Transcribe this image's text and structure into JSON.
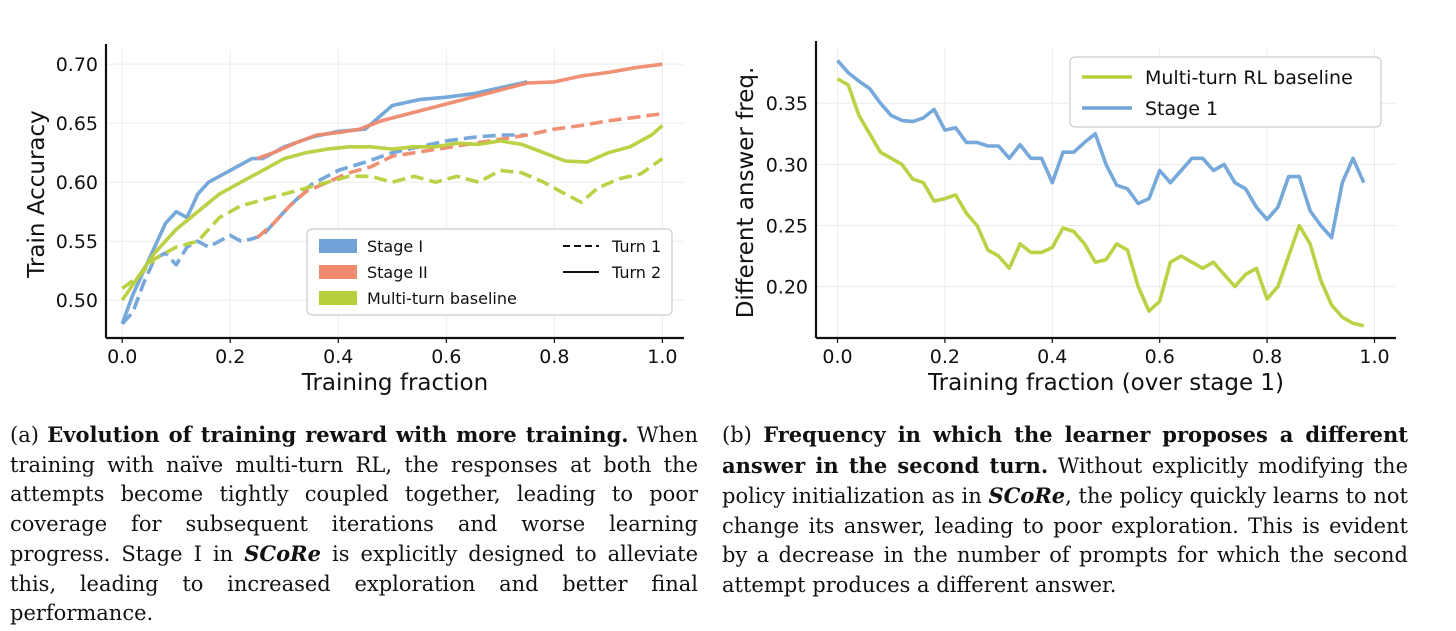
{
  "chart_data": [
    {
      "type": "line",
      "panel": "(a)",
      "xlabel": "Training fraction",
      "ylabel": "Train Accuracy",
      "xlim": [
        -0.03,
        1.04
      ],
      "ylim": [
        0.468,
        0.712
      ],
      "xticks": [
        0.0,
        0.2,
        0.4,
        0.6,
        0.8,
        1.0
      ],
      "yticks": [
        0.5,
        0.55,
        0.6,
        0.65,
        0.7
      ],
      "xtick_labels": [
        "0.0",
        "0.2",
        "0.4",
        "0.6",
        "0.8",
        "1.0"
      ],
      "ytick_labels": [
        "0.50",
        "0.55",
        "0.60",
        "0.65",
        "0.70"
      ],
      "grid": true,
      "legend": {
        "placement": "lower-right",
        "color_entries": [
          {
            "label": "Stage I",
            "color": "#6fa3d8"
          },
          {
            "label": "Stage II",
            "color": "#ef8a6d"
          },
          {
            "label": "Multi-turn baseline",
            "color": "#b8cf3c"
          }
        ],
        "style_entries": [
          {
            "label": "Turn 1",
            "dash": "dashed"
          },
          {
            "label": "Turn 2",
            "dash": "solid"
          }
        ]
      },
      "series": [
        {
          "name": "Stage I",
          "turn": "Turn 2",
          "color": "#6fa3d8",
          "dashed": false,
          "x": [
            0.0,
            0.02,
            0.04,
            0.06,
            0.08,
            0.1,
            0.12,
            0.14,
            0.16,
            0.18,
            0.2,
            0.22,
            0.24,
            0.26,
            0.3,
            0.35,
            0.4,
            0.45,
            0.5,
            0.55,
            0.6,
            0.65,
            0.7,
            0.75
          ],
          "y": [
            0.48,
            0.505,
            0.525,
            0.545,
            0.565,
            0.575,
            0.57,
            0.59,
            0.6,
            0.605,
            0.61,
            0.615,
            0.62,
            0.62,
            0.63,
            0.638,
            0.643,
            0.645,
            0.665,
            0.67,
            0.672,
            0.675,
            0.68,
            0.685
          ]
        },
        {
          "name": "Stage I",
          "turn": "Turn 1",
          "color": "#6fa3d8",
          "dashed": true,
          "x": [
            0.0,
            0.02,
            0.04,
            0.06,
            0.08,
            0.1,
            0.12,
            0.14,
            0.16,
            0.18,
            0.2,
            0.22,
            0.24,
            0.26,
            0.3,
            0.35,
            0.4,
            0.45,
            0.5,
            0.55,
            0.6,
            0.65,
            0.7,
            0.75
          ],
          "y": [
            0.48,
            0.49,
            0.515,
            0.535,
            0.54,
            0.53,
            0.545,
            0.55,
            0.545,
            0.55,
            0.555,
            0.55,
            0.552,
            0.555,
            0.575,
            0.598,
            0.61,
            0.617,
            0.625,
            0.63,
            0.635,
            0.638,
            0.64,
            0.64
          ]
        },
        {
          "name": "Stage II",
          "turn": "Turn 2",
          "color": "#ef8a6d",
          "dashed": false,
          "x": [
            0.25,
            0.28,
            0.32,
            0.36,
            0.4,
            0.44,
            0.48,
            0.75,
            0.8,
            0.85,
            0.9,
            0.95,
            1.0
          ],
          "y": [
            0.62,
            0.625,
            0.633,
            0.64,
            0.642,
            0.645,
            0.652,
            0.684,
            0.685,
            0.69,
            0.693,
            0.697,
            0.7
          ]
        },
        {
          "name": "Stage II",
          "turn": "Turn 1",
          "color": "#ef8a6d",
          "dashed": true,
          "x": [
            0.25,
            0.28,
            0.31,
            0.34,
            0.38,
            0.42,
            0.46,
            0.5,
            0.75,
            0.8,
            0.85,
            0.9,
            0.95,
            1.0
          ],
          "y": [
            0.553,
            0.565,
            0.58,
            0.592,
            0.6,
            0.608,
            0.613,
            0.622,
            0.64,
            0.645,
            0.648,
            0.652,
            0.655,
            0.658
          ]
        },
        {
          "name": "Multi-turn baseline",
          "turn": "Turn 2",
          "color": "#b8cf3c",
          "dashed": false,
          "x": [
            0.0,
            0.03,
            0.06,
            0.1,
            0.14,
            0.18,
            0.22,
            0.26,
            0.3,
            0.34,
            0.38,
            0.42,
            0.46,
            0.5,
            0.54,
            0.58,
            0.62,
            0.66,
            0.7,
            0.74,
            0.78,
            0.82,
            0.86,
            0.9,
            0.94,
            0.98,
            1.0
          ],
          "y": [
            0.5,
            0.52,
            0.54,
            0.56,
            0.575,
            0.59,
            0.6,
            0.61,
            0.62,
            0.625,
            0.628,
            0.63,
            0.63,
            0.628,
            0.63,
            0.63,
            0.633,
            0.632,
            0.635,
            0.632,
            0.625,
            0.618,
            0.617,
            0.625,
            0.63,
            0.64,
            0.648
          ]
        },
        {
          "name": "Multi-turn baseline",
          "turn": "Turn 1",
          "color": "#b8cf3c",
          "dashed": true,
          "x": [
            0.0,
            0.03,
            0.06,
            0.1,
            0.14,
            0.18,
            0.22,
            0.26,
            0.3,
            0.34,
            0.38,
            0.42,
            0.46,
            0.5,
            0.54,
            0.58,
            0.62,
            0.66,
            0.7,
            0.74,
            0.78,
            0.82,
            0.85,
            0.88,
            0.92,
            0.96,
            1.0
          ],
          "y": [
            0.51,
            0.52,
            0.535,
            0.545,
            0.55,
            0.57,
            0.58,
            0.585,
            0.59,
            0.595,
            0.6,
            0.605,
            0.605,
            0.6,
            0.605,
            0.6,
            0.605,
            0.6,
            0.61,
            0.608,
            0.6,
            0.59,
            0.583,
            0.595,
            0.603,
            0.607,
            0.62
          ]
        }
      ]
    },
    {
      "type": "line",
      "panel": "(b)",
      "xlabel": "Training fraction (over stage 1)",
      "ylabel": "Different answer freq.",
      "xlim": [
        -0.04,
        1.04
      ],
      "ylim": [
        0.158,
        0.396
      ],
      "xticks": [
        0.0,
        0.2,
        0.4,
        0.6,
        0.8,
        1.0
      ],
      "yticks": [
        0.2,
        0.25,
        0.3,
        0.35
      ],
      "xtick_labels": [
        "0.0",
        "0.2",
        "0.4",
        "0.6",
        "0.8",
        "1.0"
      ],
      "ytick_labels": [
        "0.20",
        "0.25",
        "0.30",
        "0.35"
      ],
      "grid": true,
      "legend": {
        "placement": "top-right"
      },
      "series": [
        {
          "name": "Multi-turn RL baseline",
          "color": "#b8cf3c",
          "x": [
            0.0,
            0.02,
            0.04,
            0.06,
            0.08,
            0.1,
            0.12,
            0.14,
            0.16,
            0.18,
            0.2,
            0.22,
            0.24,
            0.26,
            0.28,
            0.3,
            0.32,
            0.34,
            0.36,
            0.38,
            0.4,
            0.42,
            0.44,
            0.46,
            0.48,
            0.5,
            0.52,
            0.54,
            0.56,
            0.58,
            0.6,
            0.62,
            0.64,
            0.66,
            0.68,
            0.7,
            0.72,
            0.74,
            0.76,
            0.78,
            0.8,
            0.82,
            0.84,
            0.86,
            0.88,
            0.9,
            0.92,
            0.94,
            0.96,
            0.98
          ],
          "y": [
            0.37,
            0.365,
            0.34,
            0.325,
            0.31,
            0.305,
            0.3,
            0.288,
            0.285,
            0.27,
            0.272,
            0.275,
            0.26,
            0.25,
            0.23,
            0.225,
            0.215,
            0.235,
            0.228,
            0.228,
            0.232,
            0.248,
            0.245,
            0.235,
            0.22,
            0.222,
            0.235,
            0.23,
            0.2,
            0.18,
            0.188,
            0.22,
            0.225,
            0.22,
            0.215,
            0.22,
            0.21,
            0.2,
            0.21,
            0.215,
            0.19,
            0.2,
            0.225,
            0.25,
            0.235,
            0.205,
            0.185,
            0.175,
            0.17,
            0.168
          ]
        },
        {
          "name": "Stage 1",
          "color": "#6fa3d8",
          "x": [
            0.0,
            0.02,
            0.04,
            0.06,
            0.08,
            0.1,
            0.12,
            0.14,
            0.16,
            0.18,
            0.2,
            0.22,
            0.24,
            0.26,
            0.28,
            0.3,
            0.32,
            0.34,
            0.36,
            0.38,
            0.4,
            0.42,
            0.44,
            0.46,
            0.48,
            0.5,
            0.52,
            0.54,
            0.56,
            0.58,
            0.6,
            0.62,
            0.64,
            0.66,
            0.68,
            0.7,
            0.72,
            0.74,
            0.76,
            0.78,
            0.8,
            0.82,
            0.84,
            0.86,
            0.88,
            0.9,
            0.92,
            0.94,
            0.96,
            0.98
          ],
          "y": [
            0.385,
            0.375,
            0.368,
            0.362,
            0.35,
            0.34,
            0.336,
            0.335,
            0.338,
            0.345,
            0.328,
            0.33,
            0.318,
            0.318,
            0.315,
            0.315,
            0.305,
            0.316,
            0.305,
            0.305,
            0.285,
            0.31,
            0.31,
            0.318,
            0.325,
            0.3,
            0.283,
            0.28,
            0.268,
            0.272,
            0.295,
            0.285,
            0.295,
            0.305,
            0.305,
            0.295,
            0.3,
            0.285,
            0.28,
            0.265,
            0.255,
            0.265,
            0.29,
            0.29,
            0.262,
            0.25,
            0.24,
            0.285,
            0.305,
            0.285
          ]
        }
      ]
    }
  ],
  "captions": {
    "a": {
      "prefix": "(a) ",
      "bold": "Evolution of training reward with more training.",
      "text1": " When training with naïve multi-turn RL, the responses at both the attempts become tightly coupled together, leading to poor coverage for subsequent iterations and worse learning progress. Stage I in ",
      "italic": "SCoRe",
      "text2": " is explicitly designed to alleviate this, leading to increased exploration and better final performance."
    },
    "b": {
      "prefix": "(b) ",
      "bold": "Frequency in which the learner proposes a different answer in the second turn.",
      "text1": " Without explicitly modifying the policy initialization as in ",
      "italic": "SCoRe",
      "text2": ", the policy quickly learns to not change its answer, leading to poor exploration. This is evident by a decrease in the number of prompts for which the second attempt produces a different answer."
    }
  }
}
